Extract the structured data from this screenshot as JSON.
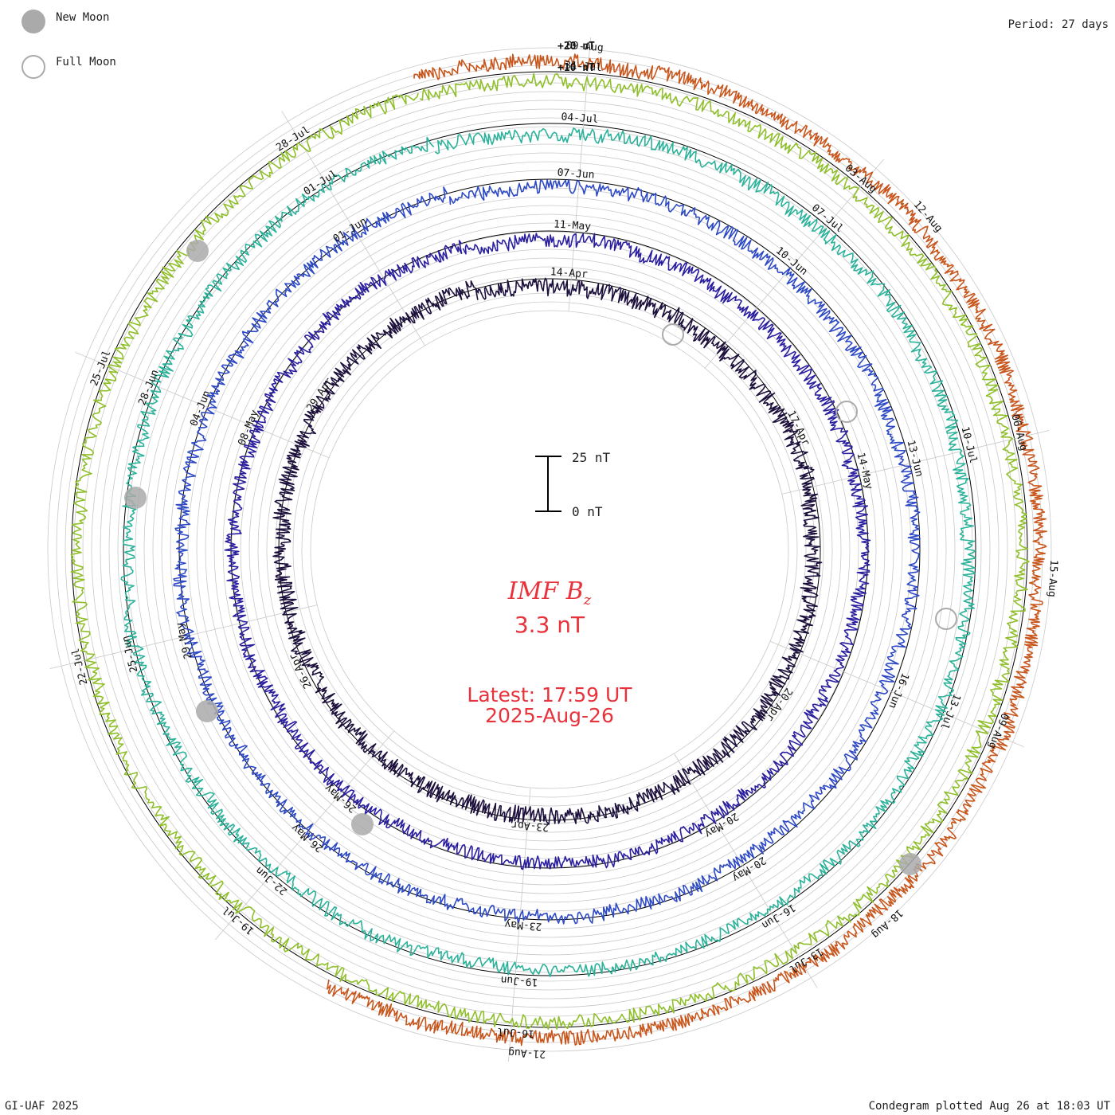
{
  "period": "Period: 27 days",
  "legend": {
    "new_moon": "New Moon",
    "full_moon": "Full Moon"
  },
  "footer": {
    "left": "GI-UAF 2025",
    "right": "Condegram plotted Aug 26 at 18:03 UT"
  },
  "center": {
    "quantity": "IMF B",
    "subscript": "z",
    "value": "3.3 nT",
    "latest": "Latest: 17:59 UT",
    "latest_date": "2025-Aug-26"
  },
  "scale_bar": {
    "top_label": "25 nT",
    "bottom_label": "0 nT"
  },
  "top_scale": {
    "label_20": "+20 nT",
    "label_10": "+10 nT"
  },
  "colors": {
    "text_red": "#e8323c",
    "grid": "#c8c8c8",
    "moon": "#aaaaaa"
  },
  "chart_data": {
    "type": "condegram",
    "period_days": 27,
    "quantity": "IMF Bz",
    "unit": "nT",
    "rings": [
      {
        "color": "#1c0f3c",
        "dates": [
          "14-Apr",
          "17-Apr",
          "20-Apr",
          "23-Apr",
          "26-Apr",
          "29-Apr"
        ]
      },
      {
        "color": "#2a1ea0",
        "dates": [
          "11-May",
          "14-May",
          "20-May",
          "26-May",
          "08-May"
        ]
      },
      {
        "color": "#2d49c6",
        "dates": [
          "07-Jun",
          "10-Jun",
          "13-Jun",
          "16-Jun",
          "20-May",
          "23-May",
          "26-May",
          "29-May",
          "04-Jun",
          "01-Jun"
        ]
      },
      {
        "color": "#2bb29a",
        "dates": [
          "04-Jul",
          "07-Jul",
          "10-Jul",
          "13-Jul",
          "16-Jun",
          "19-Jun",
          "22-Jun",
          "25-Jun",
          "28-Jun",
          "01-Jul"
        ]
      },
      {
        "color": "#8fbf2a",
        "dates": [
          "31-Jul",
          "03-Aug",
          "06-Aug",
          "09-Aug",
          "13-Jul",
          "16-Jul",
          "19-Jul",
          "22-Jul",
          "25-Jul",
          "28-Jul"
        ]
      },
      {
        "color": "#c8561c",
        "dates": [
          "09-Aug",
          "12-Aug",
          "15-Aug",
          "18-Aug",
          "21-Aug"
        ]
      }
    ],
    "new_moon_markers": 5,
    "full_moon_markers": 3
  }
}
